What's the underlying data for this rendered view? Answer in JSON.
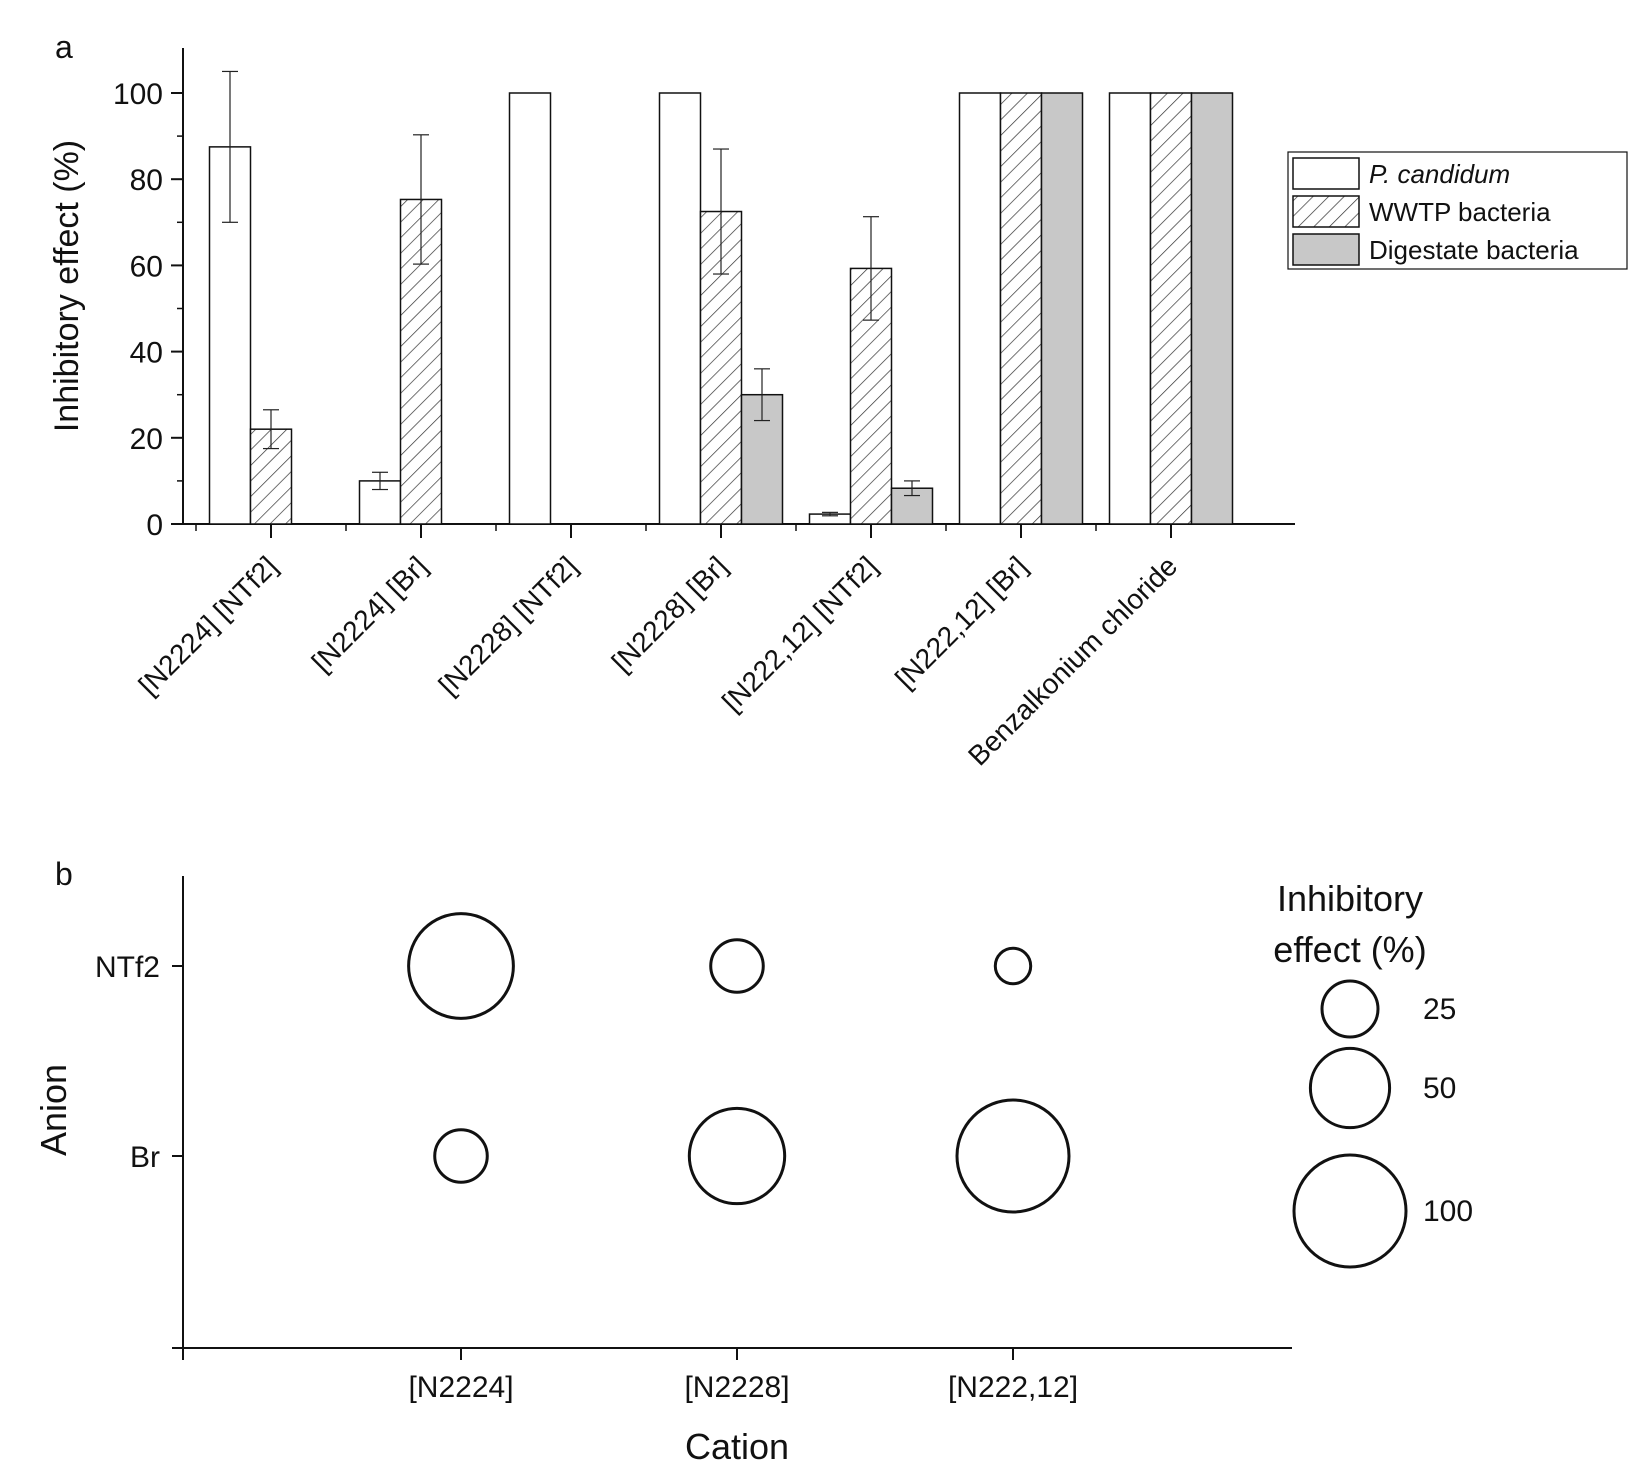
{
  "chart_data": [
    {
      "panel": "a",
      "type": "bar",
      "ylabel": "Inhibitory effect (%)",
      "xlabel": "",
      "ylim": [
        0,
        110
      ],
      "yticks": [
        0,
        20,
        40,
        60,
        80,
        100
      ],
      "categories": [
        "[N2224] [NTf2]",
        "[N2224] [Br]",
        "[N2228] [NTf2]",
        "[N2228] [Br]",
        "[N222,12] [NTf2]",
        "[N222,12] [Br]",
        "Benzalkonium chloride"
      ],
      "legend_position": "right",
      "series": [
        {
          "name": "P. candidum",
          "style": "white",
          "values": [
            87.5,
            10,
            100,
            100,
            2.3,
            100,
            100
          ],
          "errors": [
            17.5,
            2,
            null,
            null,
            0.4,
            null,
            null
          ]
        },
        {
          "name": "WWTP bacteria",
          "style": "hatched",
          "values": [
            22,
            75.3,
            null,
            72.5,
            59.3,
            100,
            100
          ],
          "errors": [
            4.5,
            15,
            null,
            14.5,
            12,
            null,
            null
          ]
        },
        {
          "name": "Digestate bacteria",
          "style": "grey",
          "values": [
            null,
            null,
            null,
            30,
            8.3,
            100,
            100
          ],
          "errors": [
            null,
            null,
            null,
            6,
            1.7,
            null,
            null
          ]
        }
      ]
    },
    {
      "panel": "b",
      "type": "scatter",
      "subtype": "bubble",
      "xlabel": "Cation",
      "ylabel": "Anion",
      "x_categories": [
        "[N2224]",
        "[N2228]",
        "[N222,12]"
      ],
      "y_categories": [
        "Br",
        "NTf2"
      ],
      "points": [
        {
          "x": "[N2224]",
          "y": "NTf2",
          "value": 87.5
        },
        {
          "x": "[N2228]",
          "y": "NTf2",
          "value": 22
        },
        {
          "x": "[N222,12]",
          "y": "NTf2",
          "value": 10
        },
        {
          "x": "[N2224]",
          "y": "Br",
          "value": 22
        },
        {
          "x": "[N2228]",
          "y": "Br",
          "value": 72.5
        },
        {
          "x": "[N222,12]",
          "y": "Br",
          "value": 100
        }
      ],
      "size_legend": {
        "title_line1": "Inhibitory",
        "title_line2": "effect (%)",
        "values": [
          25,
          50,
          100
        ]
      }
    }
  ],
  "colors": {
    "axis": "#111111",
    "white_bar": "#ffffff",
    "grey_bar": "#c8c8c8",
    "hatch": "#333333"
  }
}
